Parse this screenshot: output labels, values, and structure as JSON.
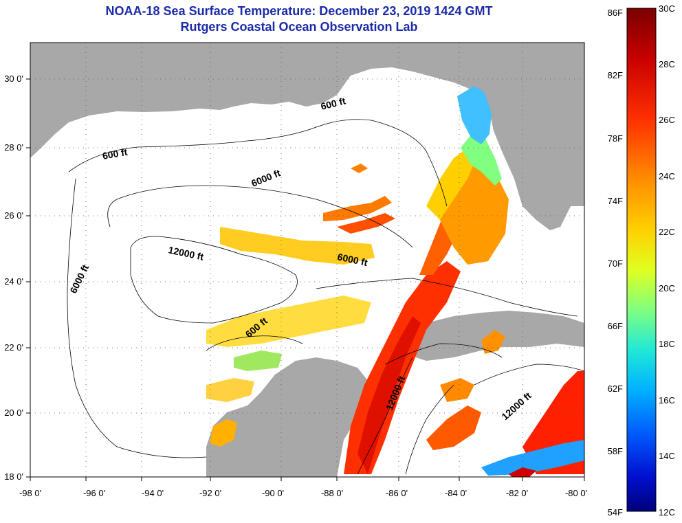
{
  "title": {
    "line1": "NOAA-18 Sea Surface Temperature:  December 23, 2019 1424 GMT",
    "line2": "Rutgers Coastal Ocean Observation Lab"
  },
  "map": {
    "lon_ticks": [
      "-98 0'",
      "-96 0'",
      "-94 0'",
      "-92 0'",
      "-90 0'",
      "-88 0'",
      "-86 0'",
      "-84 0'",
      "-82 0'",
      "-80 0'"
    ],
    "lat_ticks": [
      "30 0'",
      "28 0'",
      "26 0'",
      "24 0'",
      "22 0'",
      "20 0'",
      "18 0'"
    ],
    "contour_labels": [
      "600 ft",
      "600 ft",
      "6000 ft",
      "12000 ft",
      "6000 ft",
      "6000 ft",
      "600 ft",
      "12000 ft",
      "12000 ft"
    ],
    "colors": {
      "land": "#a8a8a8",
      "water": "#ffffff",
      "title": "#1a2aa8"
    }
  },
  "colorbar": {
    "fahrenheit_labels": [
      "86F",
      "82F",
      "78F",
      "74F",
      "70F",
      "66F",
      "62F",
      "58F",
      "54F"
    ],
    "celsius_labels": [
      "30C",
      "28C",
      "26C",
      "24C",
      "22C",
      "20C",
      "18C",
      "16C",
      "14C",
      "12C"
    ],
    "gradient": [
      "#7a0000",
      "#c80000",
      "#ff3000",
      "#ff8c00",
      "#ffd000",
      "#e0ff20",
      "#80ff80",
      "#20e8d8",
      "#00b0ff",
      "#0060ff",
      "#0010d0",
      "#00007a"
    ]
  }
}
